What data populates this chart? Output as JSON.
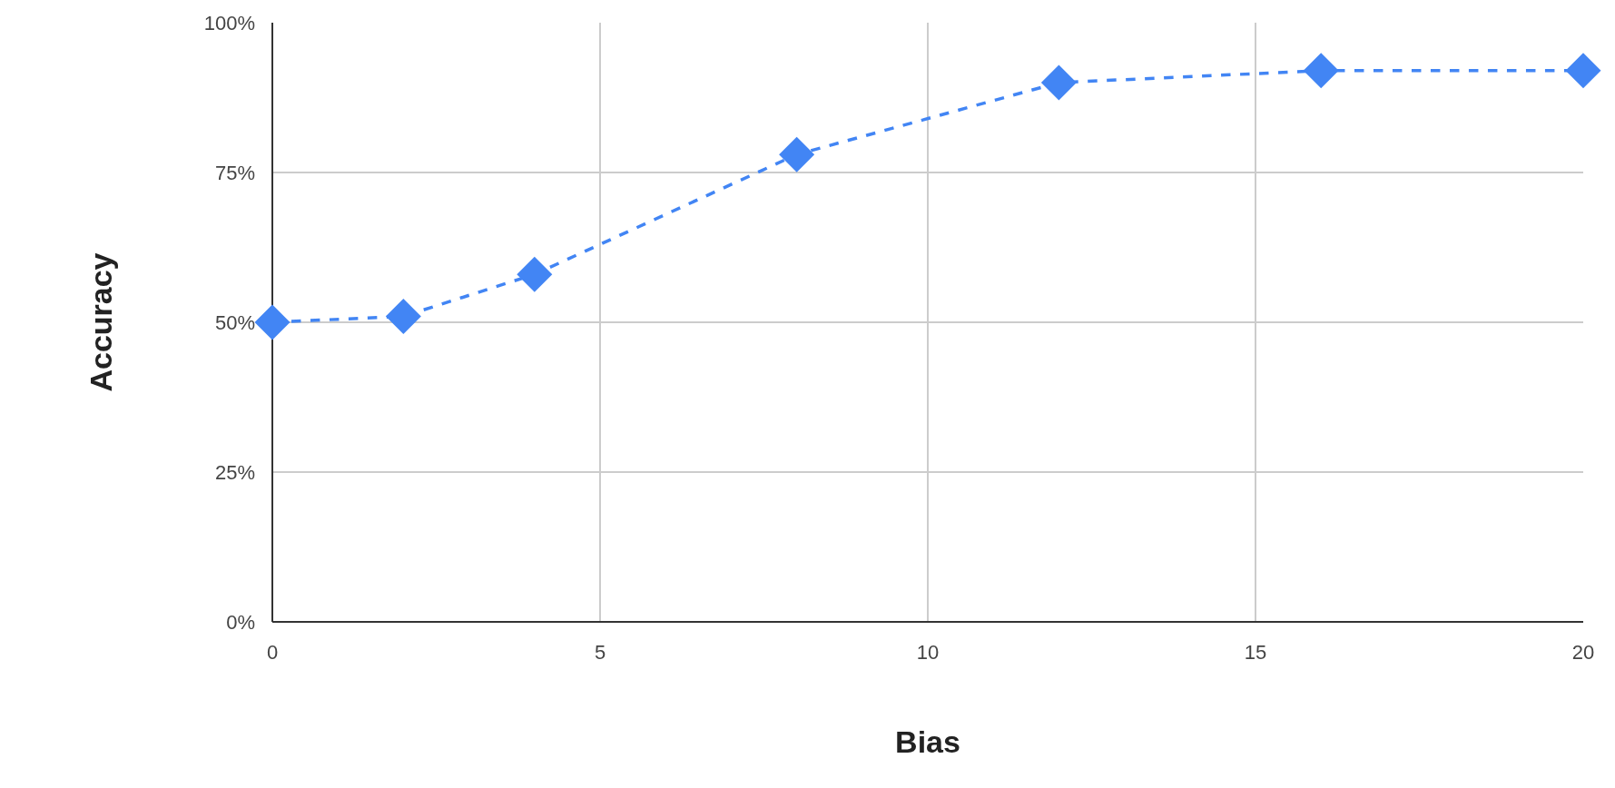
{
  "chart_data": {
    "type": "line",
    "xlabel": "Bias",
    "ylabel": "Accuracy",
    "x": [
      0,
      2,
      4,
      8,
      12,
      16,
      20
    ],
    "series": [
      {
        "color": "#4285f4",
        "values": [
          50,
          51,
          58,
          78,
          90,
          92,
          92
        ]
      }
    ],
    "xlim": [
      0,
      20
    ],
    "xticks": [
      0,
      5,
      10,
      15,
      20
    ],
    "ylim": [
      0,
      100
    ],
    "yticks": [
      {
        "value": 0,
        "label": "0%"
      },
      {
        "value": 25,
        "label": "25%"
      },
      {
        "value": 50,
        "label": "50%"
      },
      {
        "value": 75,
        "label": "75%"
      },
      {
        "value": 100,
        "label": "100%"
      }
    ],
    "grid": true,
    "marker": "diamond",
    "line_style": "dashed"
  }
}
